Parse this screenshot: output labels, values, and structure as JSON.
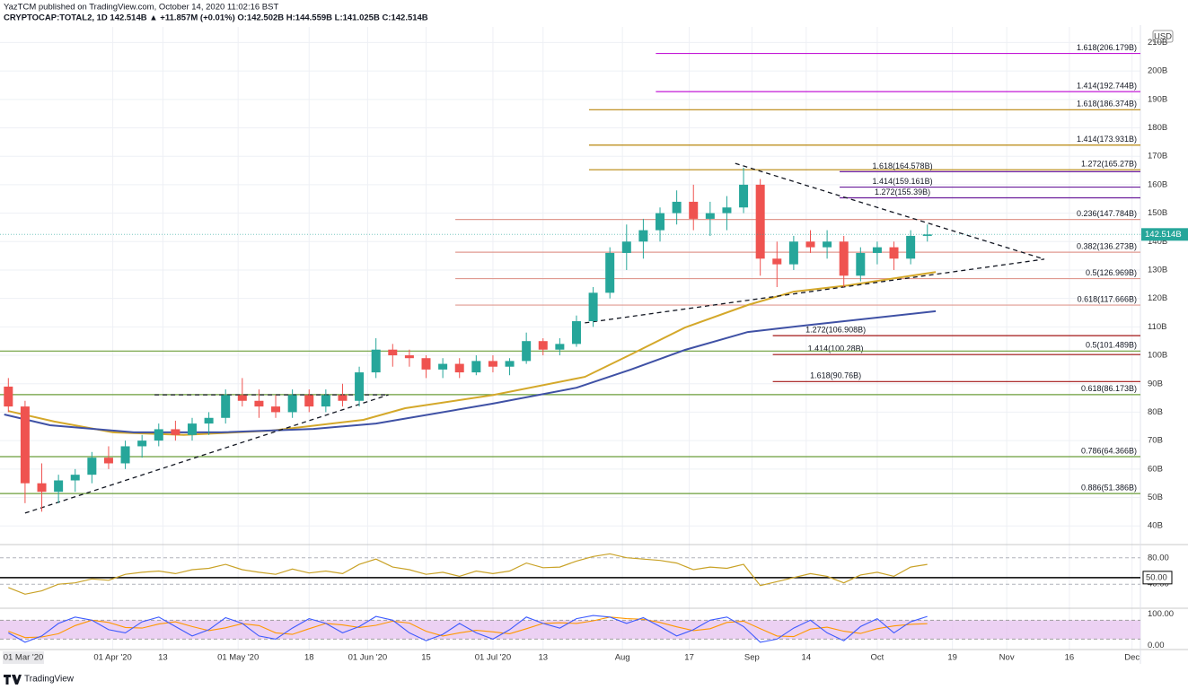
{
  "header": {
    "author_line": "YazTCM published on TradingView.com, October 14, 2020 11:02:16 BST",
    "symbol_line": "CRYPTOCAP:TOTAL2, 1D 142.514B ▲ +11.857M (+0.01%) O:142.502B H:144.559B L:141.025B C:142.514B",
    "currency": "USD",
    "brand": "TradingView"
  },
  "chart_data": {
    "type": "candlestick",
    "x": [
      "2020-03-07",
      "2020-03-11",
      "2020-03-15",
      "2020-03-19",
      "2020-03-23",
      "2020-03-27",
      "2020-03-31",
      "2020-04-04",
      "2020-04-08",
      "2020-04-12",
      "2020-04-16",
      "2020-04-20",
      "2020-04-24",
      "2020-04-28",
      "2020-05-02",
      "2020-05-06",
      "2020-05-10",
      "2020-05-14",
      "2020-05-18",
      "2020-05-22",
      "2020-05-26",
      "2020-05-30",
      "2020-06-03",
      "2020-06-07",
      "2020-06-11",
      "2020-06-15",
      "2020-06-19",
      "2020-06-23",
      "2020-06-27",
      "2020-07-01",
      "2020-07-05",
      "2020-07-09",
      "2020-07-13",
      "2020-07-17",
      "2020-07-21",
      "2020-07-25",
      "2020-07-29",
      "2020-08-02",
      "2020-08-06",
      "2020-08-10",
      "2020-08-14",
      "2020-08-18",
      "2020-08-22",
      "2020-08-26",
      "2020-08-30",
      "2020-09-03",
      "2020-09-07",
      "2020-09-11",
      "2020-09-15",
      "2020-09-19",
      "2020-09-23",
      "2020-09-27",
      "2020-10-01",
      "2020-10-05",
      "2020-10-09",
      "2020-10-13"
    ],
    "open": [
      89,
      82,
      55,
      52,
      56,
      58,
      64,
      62,
      68,
      70,
      74,
      72,
      76,
      78,
      86,
      84,
      82,
      80,
      86,
      82,
      86,
      84,
      94,
      102,
      100,
      99,
      95,
      97,
      94,
      98,
      96,
      98,
      105,
      102,
      104,
      112,
      122,
      136,
      140,
      144,
      150,
      154,
      148,
      150,
      152,
      160,
      134,
      132,
      140,
      138,
      140,
      128,
      136,
      138,
      134,
      142
    ],
    "high": [
      92,
      84,
      62,
      58,
      60,
      66,
      68,
      70,
      72,
      76,
      77,
      78,
      80,
      88,
      92,
      88,
      86,
      88,
      88,
      88,
      90,
      96,
      106,
      104,
      102,
      100,
      99,
      99,
      100,
      100,
      99,
      108,
      106,
      106,
      114,
      124,
      138,
      146,
      148,
      152,
      158,
      160,
      154,
      156,
      166,
      162,
      140,
      142,
      144,
      144,
      142,
      138,
      140,
      140,
      144,
      146
    ],
    "low": [
      80,
      48,
      45,
      48,
      52,
      55,
      60,
      60,
      64,
      68,
      70,
      70,
      72,
      76,
      82,
      78,
      78,
      78,
      80,
      80,
      82,
      82,
      92,
      96,
      96,
      92,
      92,
      92,
      93,
      94,
      93,
      97,
      100,
      100,
      103,
      110,
      120,
      130,
      134,
      140,
      146,
      144,
      142,
      144,
      150,
      128,
      124,
      130,
      136,
      134,
      124,
      126,
      132,
      130,
      132,
      140
    ],
    "close": [
      82,
      55,
      52,
      56,
      58,
      64,
      62,
      68,
      70,
      74,
      72,
      76,
      78,
      86,
      84,
      82,
      80,
      86,
      82,
      86,
      84,
      94,
      102,
      100,
      99,
      95,
      97,
      94,
      98,
      96,
      98,
      105,
      102,
      104,
      112,
      122,
      136,
      140,
      144,
      150,
      154,
      148,
      150,
      152,
      160,
      134,
      132,
      140,
      138,
      140,
      128,
      136,
      138,
      134,
      142,
      142.514
    ],
    "up_color": "#26a69a",
    "down_color": "#ef5350",
    "xlim": [
      "2020-03-05",
      "2020-12-03"
    ],
    "x_start_label": "01 Mar '20",
    "xticks": [
      {
        "value": "2020-04-01",
        "label": "01 Apr '20"
      },
      {
        "value": "2020-04-13",
        "label": "13"
      },
      {
        "value": "2020-05-01",
        "label": "01 May '20"
      },
      {
        "value": "2020-05-18",
        "label": "18"
      },
      {
        "value": "2020-06-01",
        "label": "01 Jun '20"
      },
      {
        "value": "2020-06-15",
        "label": "15"
      },
      {
        "value": "2020-07-01",
        "label": "01 Jul '20"
      },
      {
        "value": "2020-07-13",
        "label": "13"
      },
      {
        "value": "2020-08-01",
        "label": "Aug"
      },
      {
        "value": "2020-08-17",
        "label": "17"
      },
      {
        "value": "2020-09-01",
        "label": "Sep"
      },
      {
        "value": "2020-09-14",
        "label": "14"
      },
      {
        "value": "2020-10-01",
        "label": "Oct"
      },
      {
        "value": "2020-10-19",
        "label": "19"
      },
      {
        "value": "2020-11-01",
        "label": "Nov"
      },
      {
        "value": "2020-11-16",
        "label": "16"
      },
      {
        "value": "2020-12-01",
        "label": "Dec"
      }
    ],
    "ylim": [
      34.07,
      215.5
    ],
    "yticks": [
      {
        "value": 40,
        "label": "40B"
      },
      {
        "value": 50,
        "label": "50B"
      },
      {
        "value": 60,
        "label": "60B"
      },
      {
        "value": 70,
        "label": "70B"
      },
      {
        "value": 80,
        "label": "80B"
      },
      {
        "value": 90,
        "label": "90B"
      },
      {
        "value": 100,
        "label": "100B"
      },
      {
        "value": 110,
        "label": "110B"
      },
      {
        "value": 120,
        "label": "120B"
      },
      {
        "value": 130,
        "label": "130B"
      },
      {
        "value": 140,
        "label": "140B"
      },
      {
        "value": 150,
        "label": "150B"
      },
      {
        "value": 160,
        "label": "160B"
      },
      {
        "value": 170,
        "label": "170B"
      },
      {
        "value": 180,
        "label": "180B"
      },
      {
        "value": 190,
        "label": "190B"
      },
      {
        "value": 200,
        "label": "200B"
      },
      {
        "value": 210,
        "label": "210B"
      }
    ],
    "grid": true,
    "last_price": {
      "value": 142.514,
      "label": "142.514B",
      "color": "#26a69a"
    },
    "levels": [
      {
        "label": "1.618(206.179B)",
        "value": 206.179,
        "color": "#c218d6",
        "start": "2020-08-09",
        "label_at": "end"
      },
      {
        "label": "1.414(192.744B)",
        "value": 192.744,
        "color": "#c218d6",
        "start": "2020-08-09",
        "label_at": "end"
      },
      {
        "label": "1.618(186.374B)",
        "value": 186.374,
        "color": "#b8860b",
        "start": "2020-07-24",
        "label_at": "end"
      },
      {
        "label": "1.414(173.931B)",
        "value": 173.931,
        "color": "#b8860b",
        "start": "2020-07-24",
        "label_at": "end"
      },
      {
        "label": "1.272(165.27B)",
        "value": 165.27,
        "color": "#b8860b",
        "start": "2020-07-24",
        "label_at": "end"
      },
      {
        "label": "1.618(164.578B)",
        "value": 164.578,
        "color": "#6a1b9a",
        "start": "2020-09-22",
        "label_at": "start"
      },
      {
        "label": "1.414(159.161B)",
        "value": 159.161,
        "color": "#6a1b9a",
        "start": "2020-09-22",
        "label_at": "start"
      },
      {
        "label": "1.272(155.39B)",
        "value": 155.39,
        "color": "#6a1b9a",
        "start": "2020-09-22",
        "label_at": "start"
      },
      {
        "label": "0.236(147.784B)",
        "value": 147.784,
        "color": "#e09a90",
        "start": "2020-06-22",
        "label_at": "end"
      },
      {
        "label": "0.382(136.273B)",
        "value": 136.273,
        "color": "#e09a90",
        "start": "2020-06-22",
        "label_at": "end"
      },
      {
        "label": "0.5(126.969B)",
        "value": 126.969,
        "color": "#e09a90",
        "start": "2020-06-22",
        "label_at": "end"
      },
      {
        "label": "0.618(117.666B)",
        "value": 117.666,
        "color": "#e09a90",
        "start": "2020-06-22",
        "label_at": "end"
      },
      {
        "label": "1.272(106.908B)",
        "value": 106.908,
        "color": "#a31515",
        "start": "2020-09-06",
        "label_at": "start"
      },
      {
        "label": "1.414(100.28B)",
        "value": 100.28,
        "color": "#a31515",
        "start": "2020-09-06",
        "label_at": "start"
      },
      {
        "label": "1.618(90.76B)",
        "value": 90.76,
        "color": "#a31515",
        "start": "2020-09-06",
        "label_at": "start"
      },
      {
        "label": "0.5(101.489B)",
        "value": 101.489,
        "color": "#6b9e3a",
        "start": "2020-03-05",
        "label_at": "end"
      },
      {
        "label": "0.618(86.173B)",
        "value": 86.173,
        "color": "#6b9e3a",
        "start": "2020-03-05",
        "label_at": "end"
      },
      {
        "label": "0.786(64.366B)",
        "value": 64.366,
        "color": "#6b9e3a",
        "start": "2020-03-05",
        "label_at": "end"
      },
      {
        "label": "0.886(51.386B)",
        "value": 51.386,
        "color": "#6b9e3a",
        "start": "2020-03-05",
        "label_at": "end"
      }
    ],
    "moving_averages": [
      {
        "color": "#d4a82a",
        "x": [
          "2020-03-07",
          "2020-03-18",
          "2020-04-01",
          "2020-04-18",
          "2020-05-09",
          "2020-05-31",
          "2020-06-10",
          "2020-07-01",
          "2020-07-23",
          "2020-08-03",
          "2020-08-16",
          "2020-08-31",
          "2020-09-11",
          "2020-09-24",
          "2020-10-15"
        ],
        "values": [
          80.4,
          76.7,
          72.9,
          72,
          73.5,
          77.3,
          81.4,
          86,
          92.4,
          100.3,
          109.8,
          117.7,
          122.4,
          124.6,
          129.3
        ]
      },
      {
        "color": "#3f51a5",
        "x": [
          "2020-03-06",
          "2020-03-17",
          "2020-04-06",
          "2020-04-27",
          "2020-05-19",
          "2020-06-03",
          "2020-07-01",
          "2020-07-21",
          "2020-08-03",
          "2020-08-16",
          "2020-08-31",
          "2020-09-15",
          "2020-10-15"
        ],
        "values": [
          79.2,
          75.4,
          72.9,
          72.9,
          74.1,
          76,
          83,
          88.6,
          95,
          101.9,
          108.2,
          110.7,
          115.5
        ]
      }
    ],
    "trendlines": [
      {
        "x": [
          "2020-03-11",
          "2020-06-06"
        ],
        "values": [
          44.5,
          86.1
        ]
      },
      {
        "x": [
          "2020-04-11",
          "2020-06-06"
        ],
        "values": [
          86.1,
          86.1
        ]
      },
      {
        "x": [
          "2020-07-23",
          "2020-11-10"
        ],
        "values": [
          111.4,
          133.8
        ]
      },
      {
        "x": [
          "2020-08-28",
          "2020-11-10"
        ],
        "values": [
          167.5,
          133.8
        ]
      }
    ],
    "rsi": {
      "color": "#c9a227",
      "ylim": [
        5,
        100
      ],
      "yticks": [
        {
          "value": 80,
          "label": "80.00"
        },
        {
          "value": 40,
          "label": "40.00"
        }
      ],
      "midline": {
        "value": 50,
        "label": "50.00"
      },
      "values": [
        35,
        25,
        30,
        40,
        42,
        48,
        46,
        55,
        58,
        60,
        56,
        62,
        64,
        70,
        62,
        58,
        55,
        63,
        57,
        60,
        56,
        70,
        78,
        66,
        62,
        55,
        58,
        52,
        60,
        56,
        60,
        72,
        65,
        66,
        75,
        82,
        86,
        80,
        78,
        76,
        72,
        62,
        66,
        64,
        70,
        38,
        44,
        50,
        56,
        52,
        42,
        54,
        58,
        52,
        66,
        70
      ]
    },
    "stoch": {
      "ylim": [
        -13,
        118
      ],
      "band": [
        20,
        80
      ],
      "band_color": "#e7c6f0",
      "yticks": [
        {
          "value": 100,
          "label": "100.00"
        },
        {
          "value": 0,
          "label": "0.00"
        }
      ],
      "k_color": "#3d5afe",
      "d_color": "#ff9800",
      "k": [
        40,
        10,
        30,
        70,
        90,
        80,
        50,
        40,
        75,
        90,
        60,
        30,
        50,
        88,
        70,
        30,
        20,
        55,
        85,
        70,
        40,
        60,
        92,
        80,
        40,
        15,
        35,
        70,
        40,
        20,
        50,
        90,
        70,
        55,
        85,
        95,
        90,
        70,
        88,
        60,
        30,
        50,
        80,
        90,
        60,
        10,
        20,
        55,
        80,
        40,
        15,
        60,
        85,
        40,
        75,
        92
      ],
      "d": [
        45,
        25,
        27,
        37,
        63,
        80,
        73,
        57,
        55,
        68,
        75,
        60,
        47,
        56,
        69,
        63,
        40,
        35,
        53,
        70,
        65,
        57,
        64,
        77,
        71,
        45,
        30,
        40,
        48,
        43,
        37,
        53,
        70,
        72,
        70,
        78,
        90,
        85,
        83,
        73,
        59,
        47,
        53,
        73,
        77,
        53,
        30,
        28,
        52,
        58,
        45,
        38,
        53,
        62,
        67,
        69
      ]
    }
  }
}
